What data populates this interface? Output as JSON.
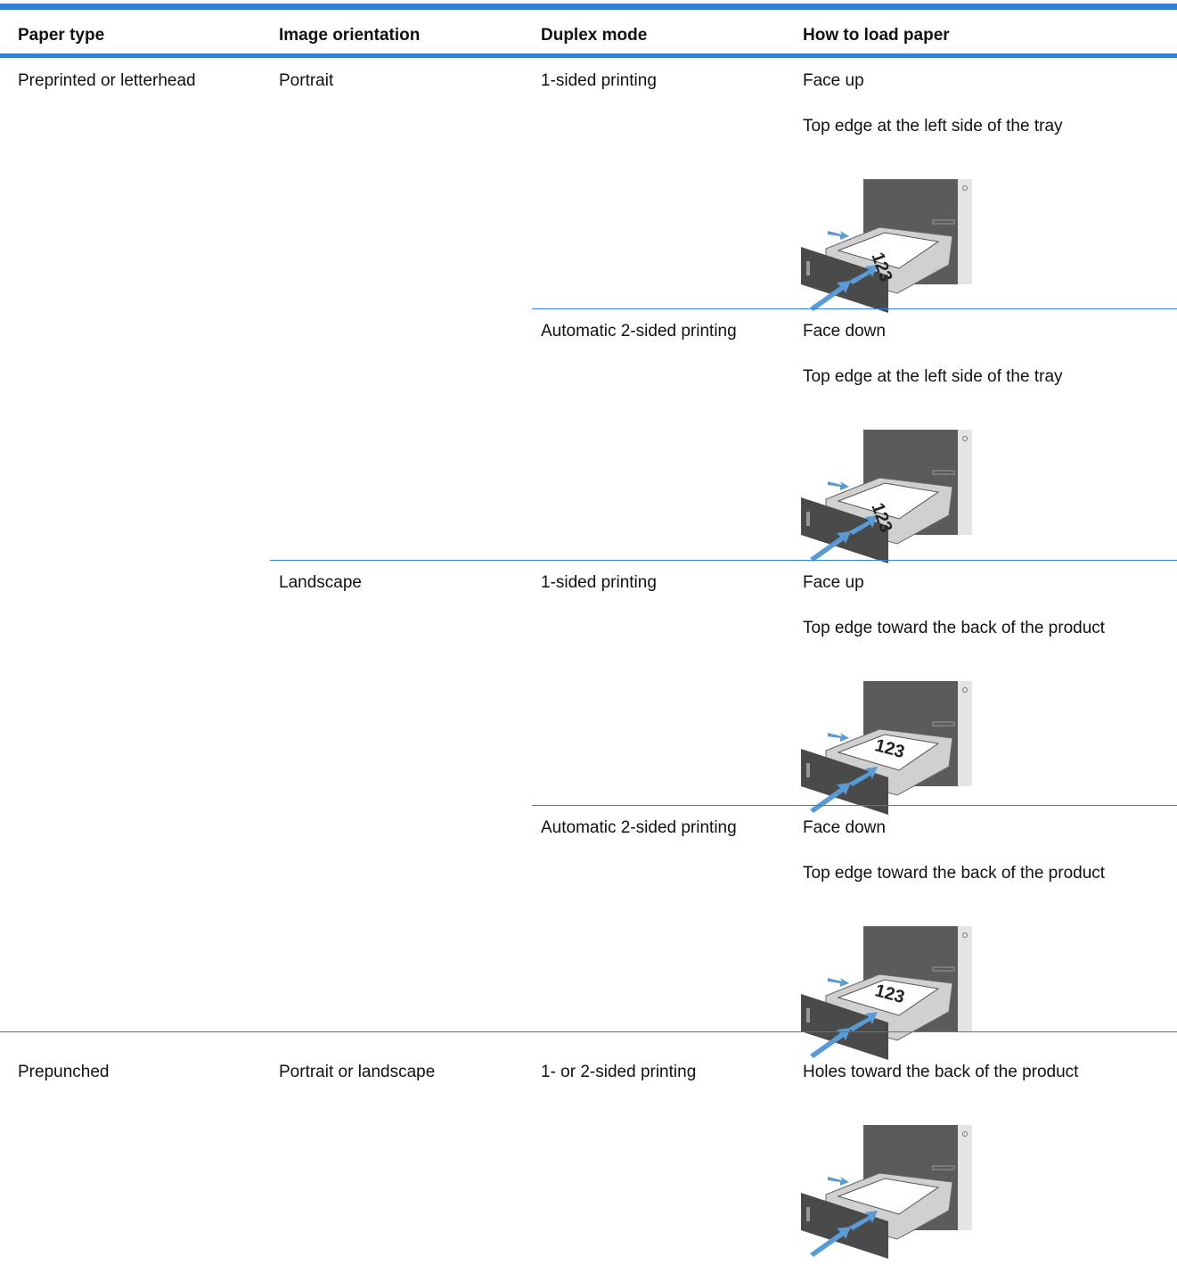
{
  "table": {
    "header": [
      "Paper type",
      "Image orientation",
      "Duplex mode",
      "How to load paper"
    ],
    "rows": [
      {
        "paper_type": "Preprinted or letterhead",
        "orientation": "Portrait",
        "duplex": "1-sided printing",
        "load": [
          "Face up",
          "Top edge at the left side of the tray"
        ],
        "image_label": "123"
      },
      {
        "duplex": "Automatic 2-sided printing",
        "load": [
          "Face down",
          "Top edge at the left side of the tray"
        ],
        "image_label": "123"
      },
      {
        "orientation": "Landscape",
        "duplex": "1-sided printing",
        "load": [
          "Face up",
          "Top edge toward the back of the product"
        ],
        "image_label": "123"
      },
      {
        "duplex": "Automatic 2-sided printing",
        "load": [
          "Face down",
          "Top edge toward the back of the product"
        ],
        "image_label": "123"
      },
      {
        "paper_type": "Prepunched",
        "orientation": "Portrait or landscape",
        "duplex": "1- or 2-sided printing",
        "load": [
          "Holes toward the back of the product"
        ]
      }
    ]
  }
}
